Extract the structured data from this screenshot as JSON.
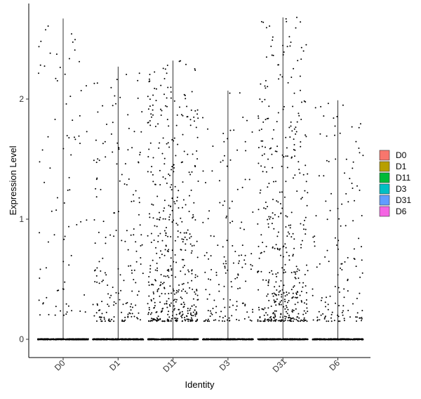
{
  "chart_data": {
    "type": "scatter",
    "subtype": "violin-jitter",
    "title": "",
    "xlabel": "Identity",
    "ylabel": "Expression Level",
    "categories": [
      "D0",
      "D1",
      "D11",
      "D3",
      "D31",
      "D6"
    ],
    "ylim": [
      -0.15,
      2.72
    ],
    "yticks": [
      0,
      1,
      2
    ],
    "grid": false,
    "legend_position": "right",
    "series": [
      {
        "name": "D0",
        "color": "#F8766D",
        "max": 2.67,
        "n_zero": 400,
        "n_positive": 85
      },
      {
        "name": "D1",
        "color": "#B79F00",
        "max": 2.27,
        "n_zero": 400,
        "n_positive": 185
      },
      {
        "name": "D11",
        "color": "#00BA38",
        "max": 2.32,
        "n_zero": 400,
        "n_positive": 480
      },
      {
        "name": "D3",
        "color": "#00BFC4",
        "max": 2.07,
        "n_zero": 400,
        "n_positive": 150
      },
      {
        "name": "D31",
        "color": "#619CFF",
        "max": 2.68,
        "n_zero": 400,
        "n_positive": 440
      },
      {
        "name": "D6",
        "color": "#F564E3",
        "max": 1.99,
        "n_zero": 400,
        "n_positive": 140
      }
    ]
  }
}
